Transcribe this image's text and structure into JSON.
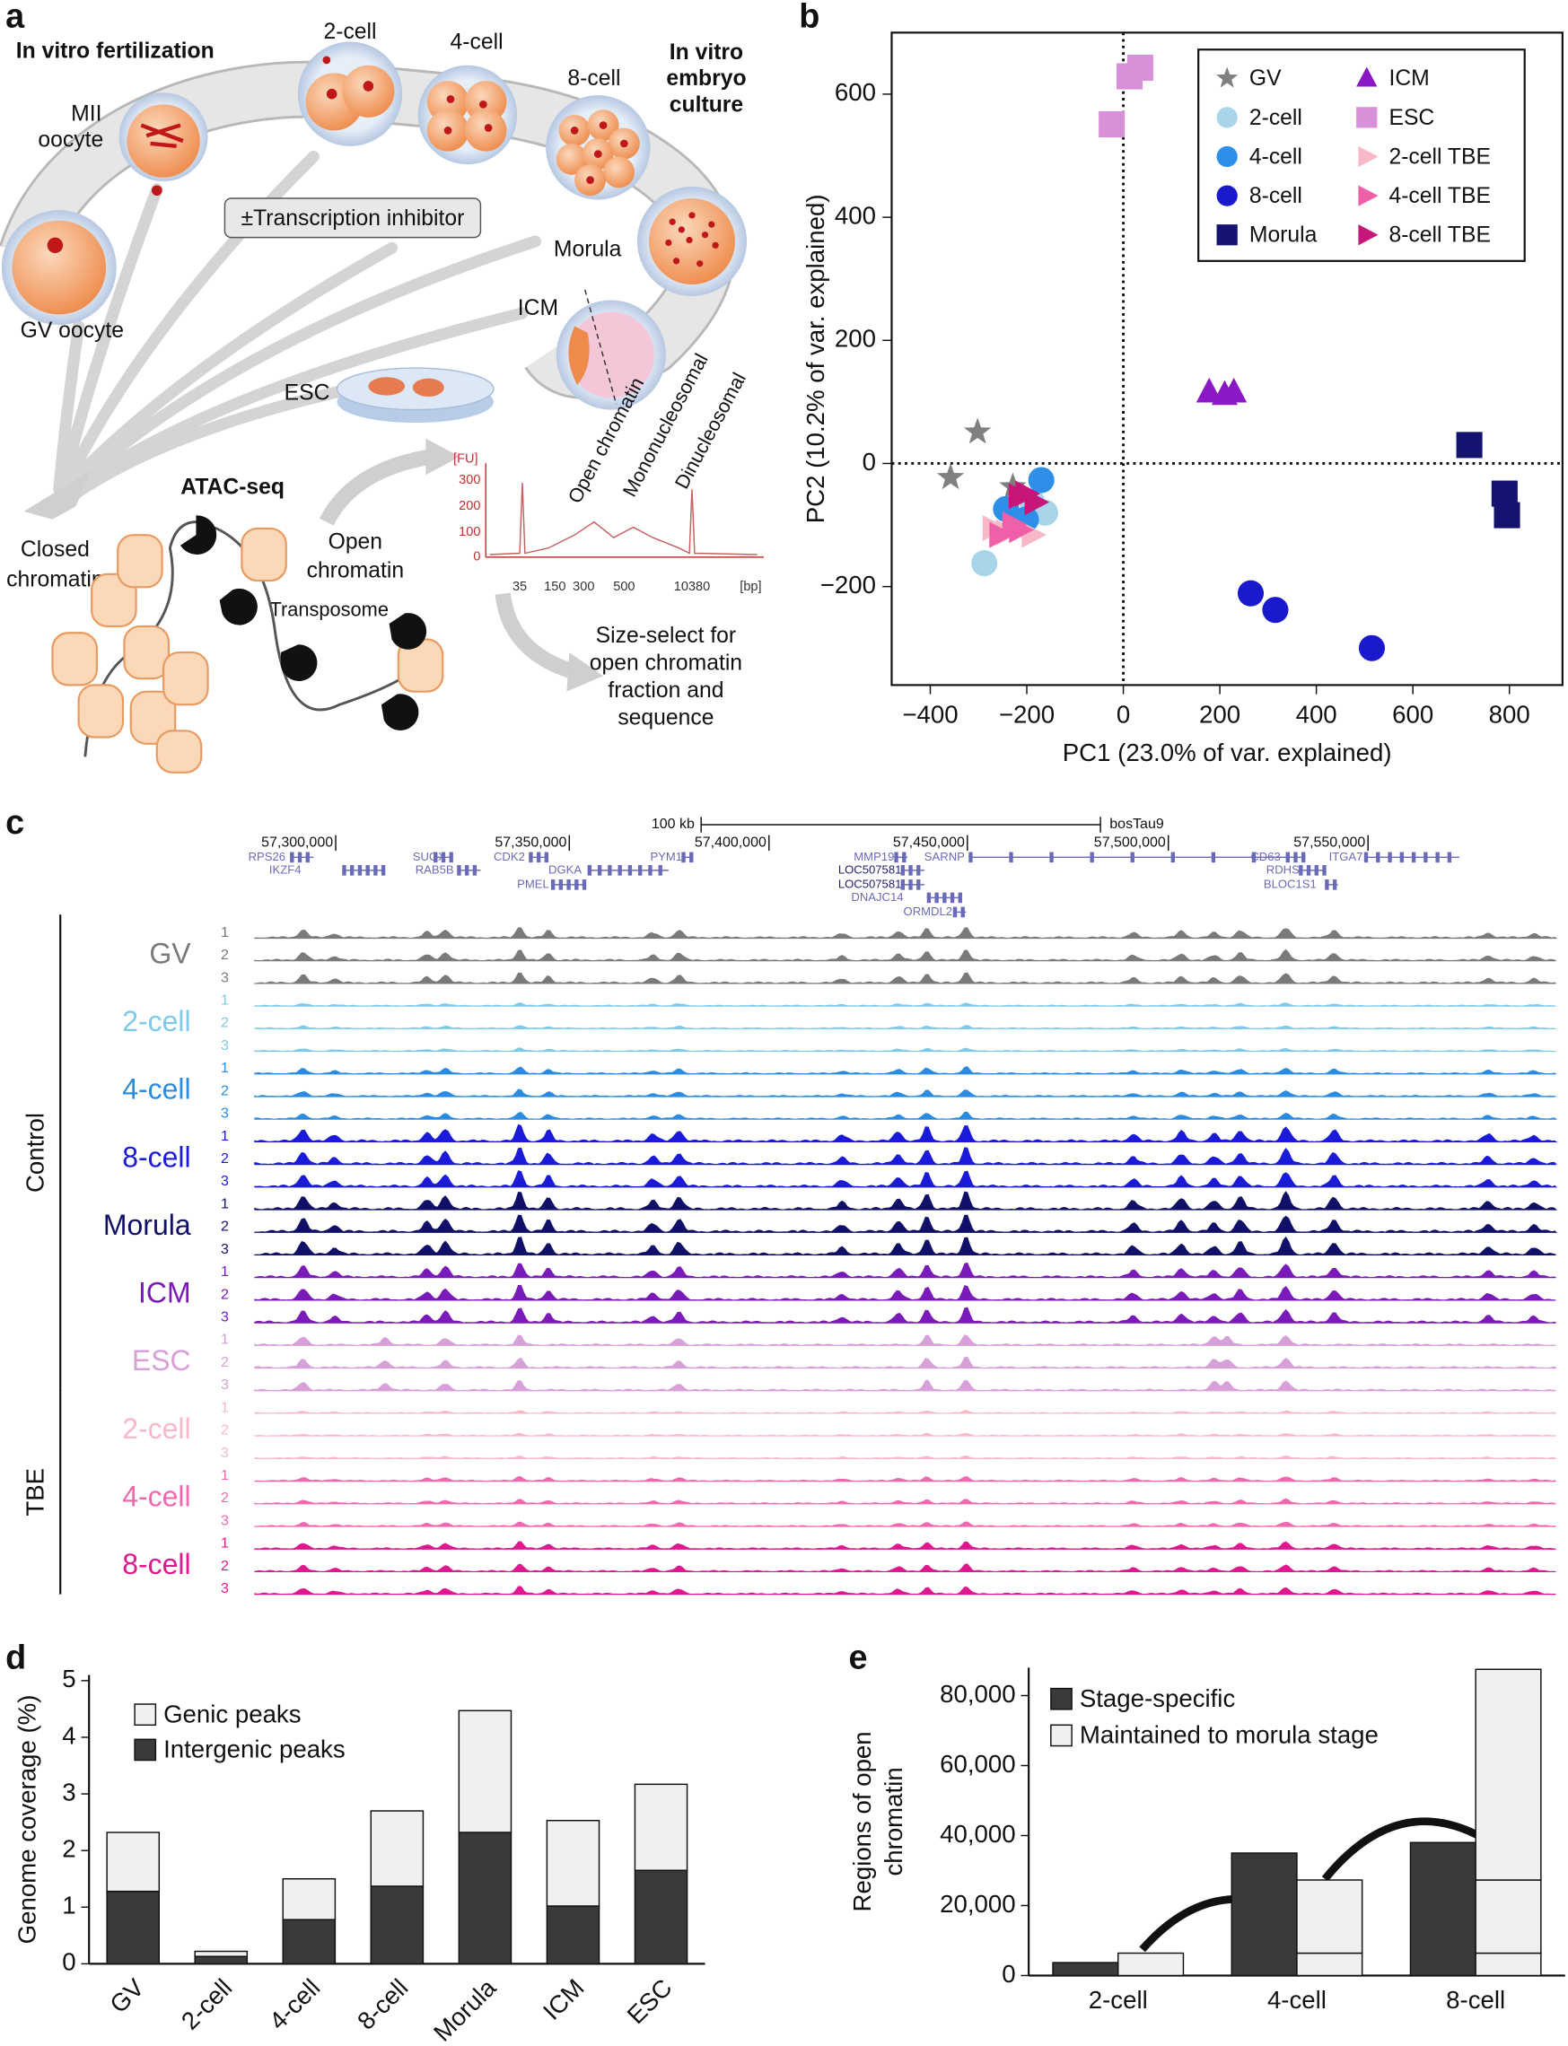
{
  "panel_labels": [
    "a",
    "b",
    "c",
    "d",
    "e"
  ],
  "panel_a": {
    "ivf": "In vitro fertilization",
    "stages": [
      "2-cell",
      "4-cell",
      "8-cell"
    ],
    "culture": [
      "In vitro",
      "embryo",
      "culture"
    ],
    "mii": [
      "MII",
      "oocyte"
    ],
    "inhibitor": "±Transcription inhibitor",
    "morula": "Morula",
    "icm": "ICM",
    "gv": "GV oocyte",
    "esc": "ESC",
    "atac": "ATAC-seq",
    "closed": [
      "Closed",
      "chromatin"
    ],
    "open": [
      "Open",
      "chromatin"
    ],
    "transposome": "Transposome",
    "fragments": [
      "Open chromatin",
      "Mononucleosomal",
      "Dinucleosomal"
    ],
    "fu_axis": {
      "label": "[FU]",
      "ticks": [
        "300",
        "200",
        "100",
        "0"
      ]
    },
    "bp_axis": {
      "label": "[bp]",
      "ticks": [
        "35",
        "150",
        "300",
        "500",
        "10380"
      ]
    },
    "size_select": [
      "Size-select for",
      "open chromatin",
      "fraction and",
      "sequence"
    ]
  },
  "chart_data": [
    {
      "type": "scatter",
      "xlabel": "PC1 (23.0% of var. explained)",
      "ylabel": "PC2 (10.2% of var. explained)",
      "xlim": [
        -480,
        910
      ],
      "ylim": [
        -360,
        700
      ],
      "xticks": [
        {
          "value": -400,
          "label": "−400"
        },
        {
          "value": -200,
          "label": "−200"
        },
        0,
        200,
        400,
        600,
        800
      ],
      "yticks": [
        {
          "value": -200,
          "label": "−200"
        },
        0,
        200,
        400,
        600
      ],
      "zero_lines": true,
      "legend": "upper right",
      "series": [
        {
          "name": "GV",
          "color": "#808080",
          "marker": "star",
          "x": [
            -302,
            -358,
            -229
          ],
          "y": [
            51,
            -23,
            -38
          ]
        },
        {
          "name": "2-cell",
          "color": "#a8d5ea",
          "marker": "circle",
          "x": [
            -288,
            -162,
            -189
          ],
          "y": [
            -162,
            -80,
            -63
          ]
        },
        {
          "name": "4-cell",
          "color": "#2e8fe8",
          "marker": "circle",
          "x": [
            -170,
            -202,
            -243
          ],
          "y": [
            -27,
            -91,
            -74
          ]
        },
        {
          "name": "8-cell",
          "color": "#1a1acc",
          "marker": "circle",
          "x": [
            264,
            315,
            515
          ],
          "y": [
            -211,
            -238,
            -300
          ]
        },
        {
          "name": "Morula",
          "color": "#141470",
          "marker": "square",
          "x": [
            717,
            790,
            795
          ],
          "y": [
            30,
            -49,
            -84
          ]
        },
        {
          "name": "ICM",
          "color": "#8a18c4",
          "marker": "triangle",
          "x": [
            178,
            229,
            210
          ],
          "y": [
            116,
            116,
            112
          ]
        },
        {
          "name": "ESC",
          "color": "#d890d8",
          "marker": "square",
          "x": [
            13,
            35,
            -24
          ],
          "y": [
            629,
            643,
            551
          ]
        },
        {
          "name": "2-cell TBE",
          "color": "#f8b8c8",
          "marker": "triangle-right",
          "x": [
            -243,
            -189,
            -270
          ],
          "y": [
            -112,
            -116,
            -105
          ]
        },
        {
          "name": "4-cell TBE",
          "color": "#f060a8",
          "marker": "triangle-right",
          "x": [
            -229,
            -256,
            -215
          ],
          "y": [
            -99,
            -116,
            -108
          ]
        },
        {
          "name": "8-cell TBE",
          "color": "#c8157a",
          "marker": "triangle-right",
          "x": [
            -216,
            -183,
            -202
          ],
          "y": [
            -53,
            -63,
            -49
          ]
        }
      ]
    },
    {
      "type": "stacked-bar",
      "ylabel": "Genome coverage (%)",
      "categories": [
        "GV",
        "2-cell",
        "4-cell",
        "8-cell",
        "Morula",
        "ICM",
        "ESC"
      ],
      "ylim": [
        0,
        5.1
      ],
      "yticks": [
        0,
        1,
        2,
        3,
        4,
        5
      ],
      "legend": "upper left",
      "series": [
        {
          "name": "Intergenic peaks",
          "color": "#3a3a3a",
          "values": [
            1.28,
            0.13,
            0.78,
            1.37,
            2.32,
            1.02,
            1.65
          ]
        },
        {
          "name": "Genic peaks",
          "color": "#f0f0f0",
          "values": [
            1.04,
            0.09,
            0.72,
            1.33,
            2.15,
            1.51,
            1.52
          ]
        }
      ]
    },
    {
      "type": "grouped-stacked-bar",
      "ylabel": [
        "Regions of open",
        "chromatin"
      ],
      "categories": [
        "2-cell",
        "4-cell",
        "8-cell"
      ],
      "ylim": [
        0,
        88000
      ],
      "yticks": [
        0,
        {
          "value": 20000,
          "label": "20,000"
        },
        {
          "value": 40000,
          "label": "40,000"
        },
        {
          "value": 60000,
          "label": "60,000"
        },
        {
          "value": 80000,
          "label": "80,000"
        }
      ],
      "legend": "upper left",
      "series": [
        {
          "name": "Stage-specific",
          "color": "#3a3a3a",
          "values": [
            3700,
            35000,
            38000
          ]
        },
        {
          "name": "Maintained to morula stage",
          "color": "#f0f0f0",
          "segments": [
            [
              6400
            ],
            [
              6400,
              20900
            ],
            [
              6400,
              20900,
              60200
            ]
          ]
        }
      ]
    }
  ],
  "panel_c": {
    "scale": "100 kb",
    "assembly": "bosTau9",
    "coordinates": [
      "57,300,000",
      "57,350,000",
      "57,400,000",
      "57,450,000",
      "57,500,000",
      "57,550,000"
    ],
    "genes": [
      "RPS26",
      "IKZF4",
      "SUOX",
      "RAB5B",
      "CDK2",
      "PMEL",
      "DGKA",
      "PYM1",
      "MMP19",
      "LOC507581",
      "LOC507581",
      "DNAJC14",
      "ORMDL2",
      "SARNP",
      "CD63",
      "RDHS",
      "BLOC1S1",
      "ITGA7"
    ],
    "replicates": [
      "1",
      "2",
      "3"
    ],
    "groups": [
      {
        "label": "Control",
        "samples": [
          {
            "name": "GV",
            "color": "#7a7a7a"
          },
          {
            "name": "2-cell",
            "color": "#7ec8e8"
          },
          {
            "name": "4-cell",
            "color": "#2b8be0"
          },
          {
            "name": "8-cell",
            "color": "#1a1ad8"
          },
          {
            "name": "Morula",
            "color": "#101068"
          },
          {
            "name": "ICM",
            "color": "#7a1ab8"
          },
          {
            "name": "ESC",
            "color": "#d8a0d8"
          }
        ]
      },
      {
        "label": "TBE",
        "samples": [
          {
            "name": "2-cell",
            "color": "#f8b8c8"
          },
          {
            "name": "4-cell",
            "color": "#f068b0"
          },
          {
            "name": "8-cell",
            "color": "#e01890"
          }
        ]
      }
    ]
  }
}
